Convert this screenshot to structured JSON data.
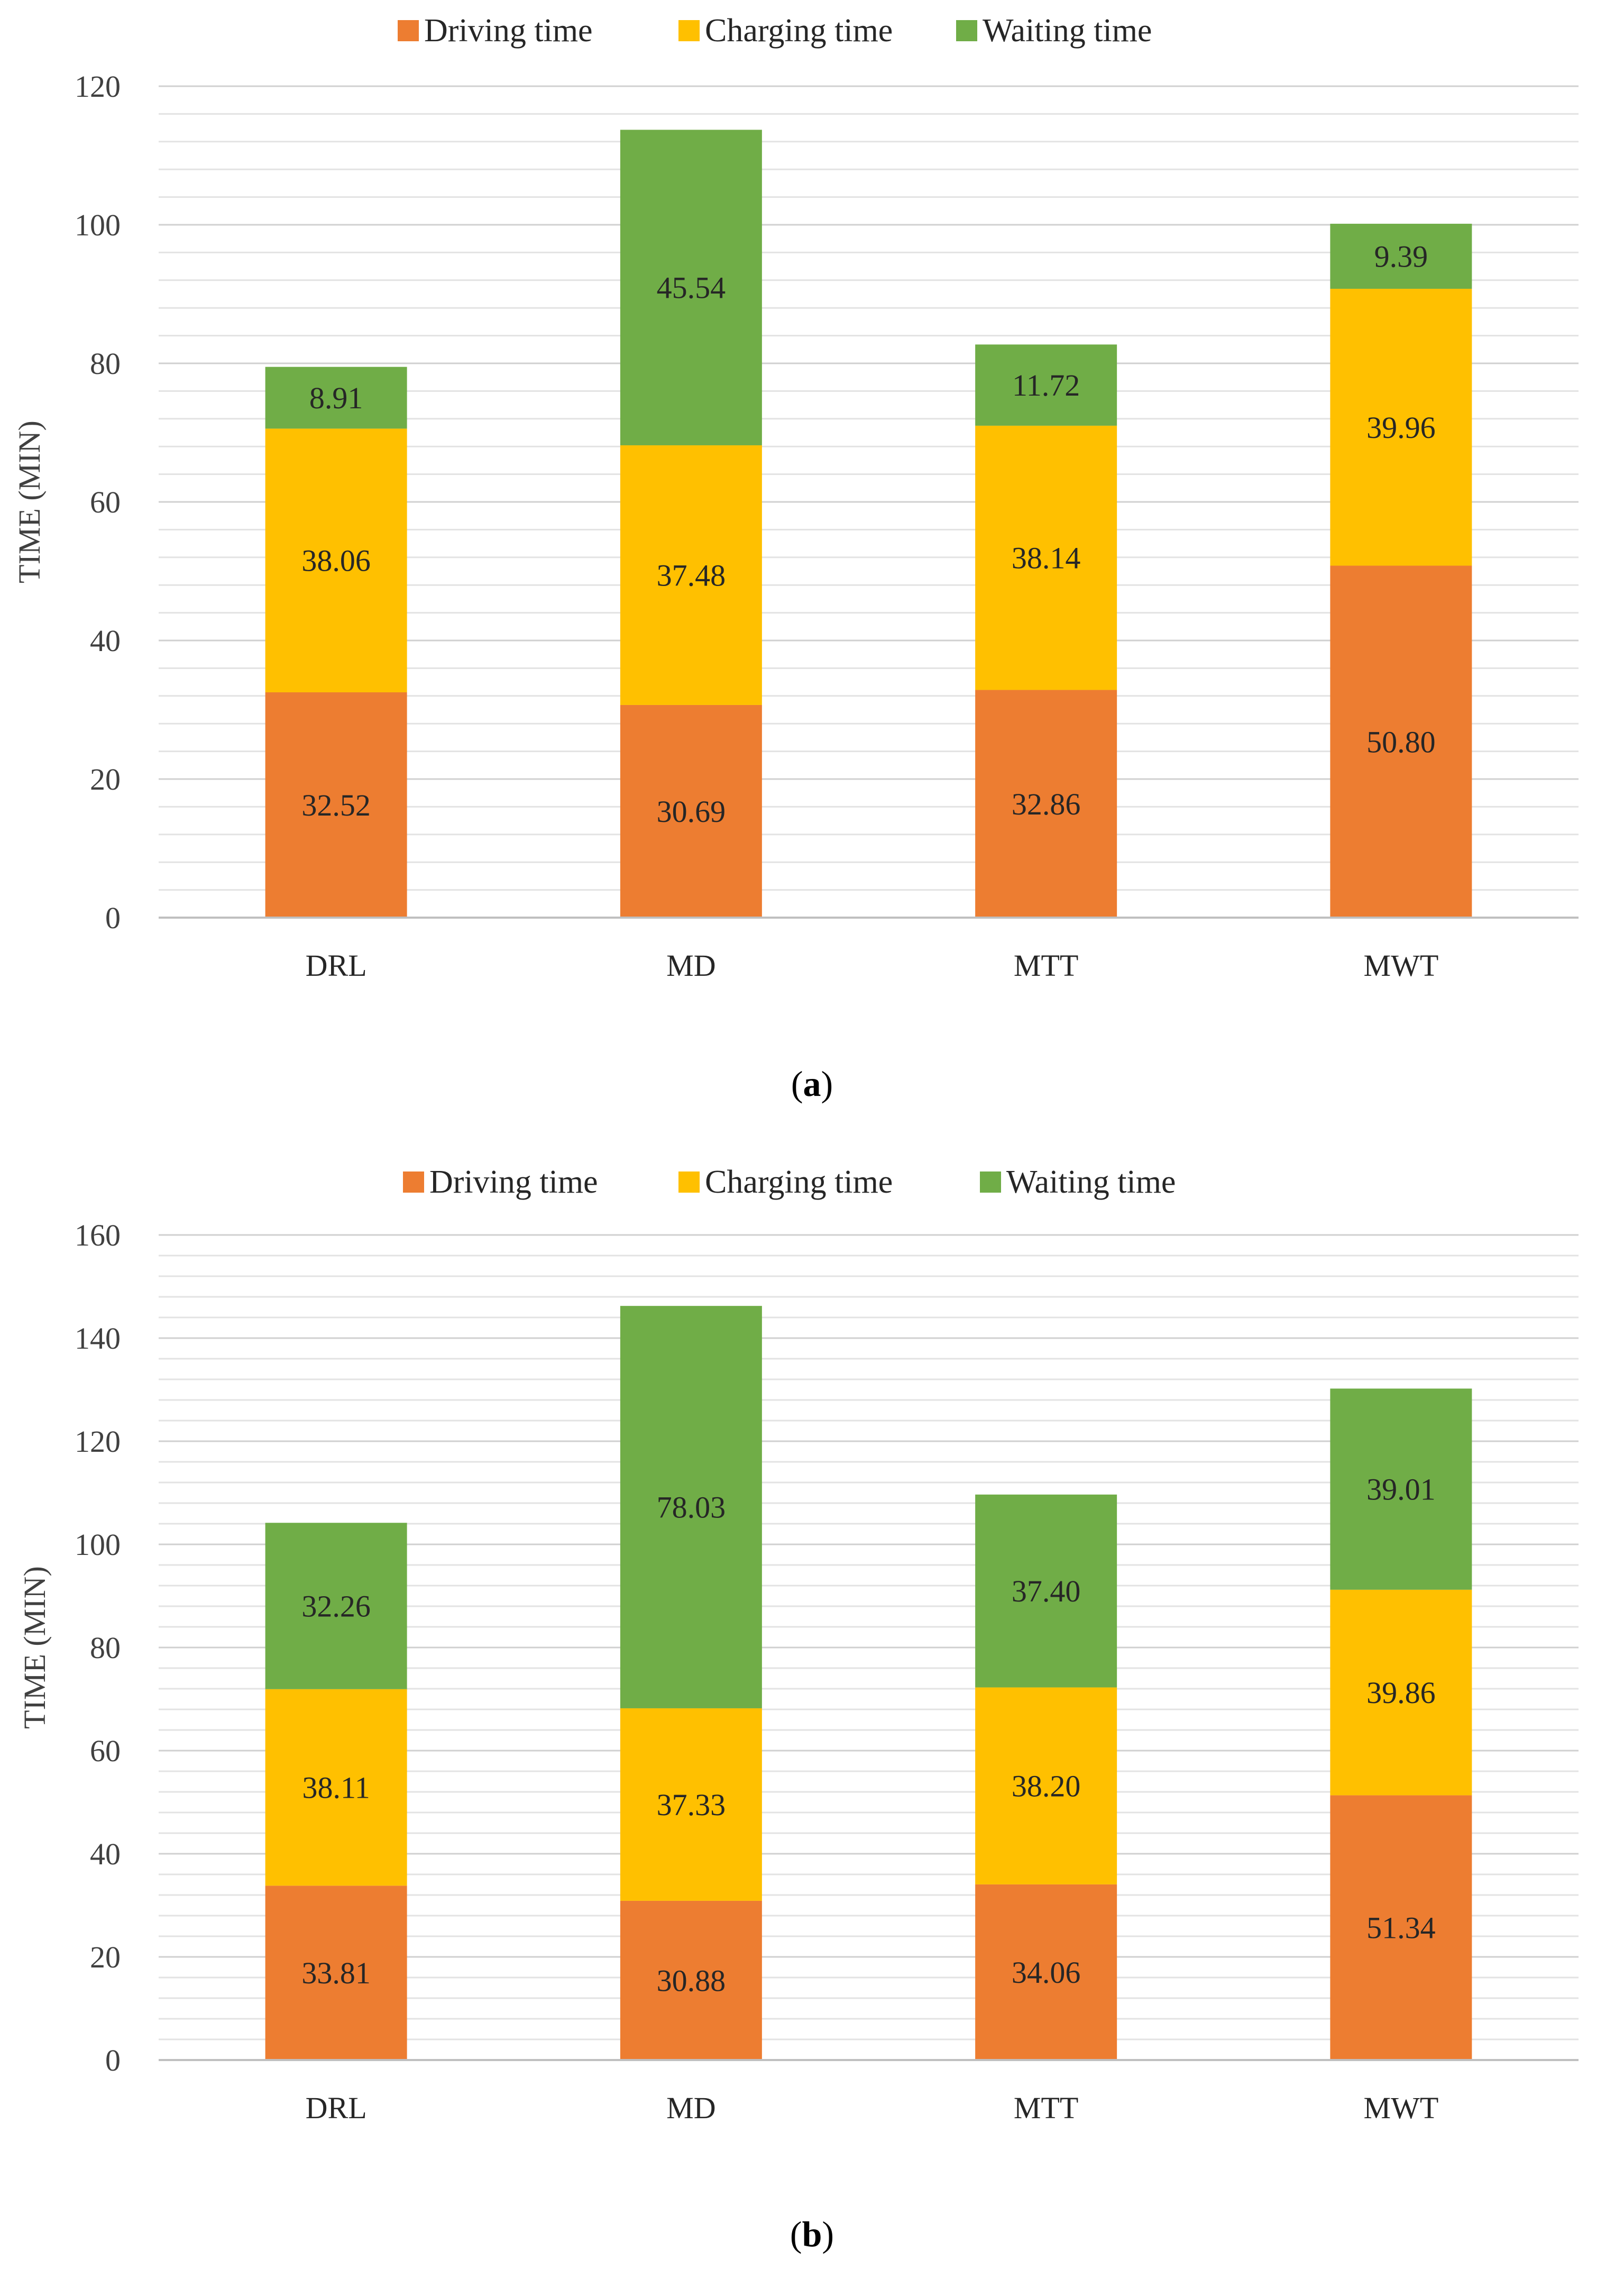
{
  "chart_data": [
    {
      "type": "bar",
      "stacked": true,
      "panel": "a",
      "categories": [
        "DRL",
        "MD",
        "MTT",
        "MWT"
      ],
      "series": [
        {
          "name": "Driving time",
          "color": "#ED7D31",
          "values": [
            32.52,
            30.69,
            32.86,
            50.8
          ],
          "labels": [
            "32.52",
            "30.69",
            "32.86",
            "50.80"
          ]
        },
        {
          "name": "Charging time",
          "color": "#FFC000",
          "values": [
            38.06,
            37.48,
            38.14,
            39.96
          ],
          "labels": [
            "38.06",
            "37.48",
            "38.14",
            "39.96"
          ]
        },
        {
          "name": "Waiting time",
          "color": "#70AD47",
          "values": [
            8.91,
            45.54,
            11.72,
            9.39
          ],
          "labels": [
            "8.91",
            "45.54",
            "11.72",
            "9.39"
          ]
        }
      ],
      "ylabel": "TIME (MIN)",
      "ylim": [
        0,
        120
      ],
      "yticks": [
        "0",
        "20",
        "40",
        "60",
        "80",
        "100",
        "120"
      ],
      "minor_step": 4,
      "grid": true,
      "legend_position": "top"
    },
    {
      "type": "bar",
      "stacked": true,
      "panel": "b",
      "categories": [
        "DRL",
        "MD",
        "MTT",
        "MWT"
      ],
      "series": [
        {
          "name": "Driving time",
          "color": "#ED7D31",
          "values": [
            33.81,
            30.88,
            34.06,
            51.34
          ],
          "labels": [
            "33.81",
            "30.88",
            "34.06",
            "51.34"
          ]
        },
        {
          "name": "Charging time",
          "color": "#FFC000",
          "values": [
            38.11,
            37.33,
            38.2,
            39.86
          ],
          "labels": [
            "38.11",
            "37.33",
            "38.20",
            "39.86"
          ]
        },
        {
          "name": "Waiting time",
          "color": "#70AD47",
          "values": [
            32.26,
            78.03,
            37.4,
            39.01
          ],
          "labels": [
            "32.26",
            "78.03",
            "37.40",
            "39.01"
          ]
        }
      ],
      "ylabel": "TIME (MIN)",
      "ylim": [
        0,
        160
      ],
      "yticks": [
        "0",
        "20",
        "40",
        "60",
        "80",
        "100",
        "120",
        "140",
        "160"
      ],
      "minor_step": 4,
      "grid": true,
      "legend_position": "top"
    }
  ],
  "panels": {
    "a_label": "a",
    "b_label": "b"
  }
}
